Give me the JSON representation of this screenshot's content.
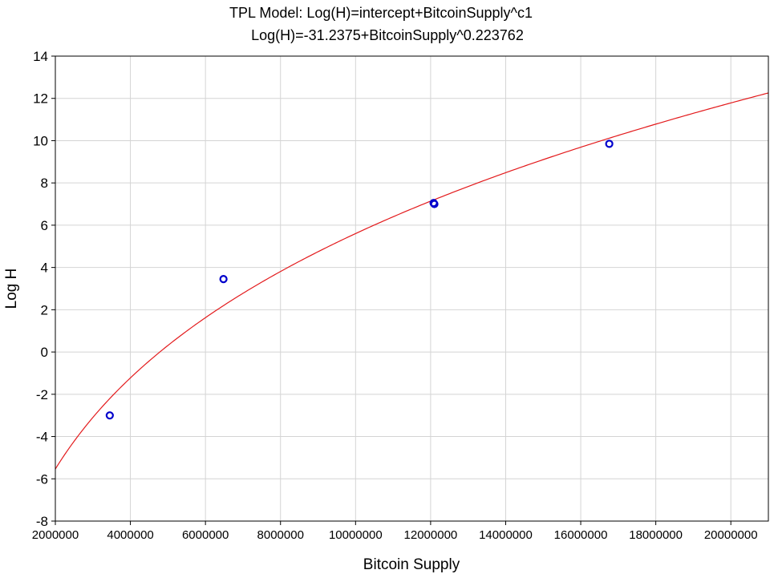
{
  "chart_data": {
    "type": "scatter",
    "title": "TPL Model: Log(H)=intercept+BitcoinSupply^c1",
    "subtitle": "Log(H)=-31.2375+BitcoinSupply^0.223762",
    "xlabel": "Bitcoin Supply",
    "ylabel": "Log H",
    "xlim": [
      2000000,
      21000000
    ],
    "ylim": [
      -8,
      14
    ],
    "xticks": [
      2000000,
      4000000,
      6000000,
      8000000,
      10000000,
      12000000,
      14000000,
      16000000,
      18000000,
      20000000
    ],
    "xtick_labels": [
      "2000000",
      "4000000",
      "6000000",
      "8000000",
      "10000000",
      "12000000",
      "14000000",
      "16000000",
      "18000000",
      "20000000"
    ],
    "yticks": [
      -8,
      -6,
      -4,
      -2,
      0,
      2,
      4,
      6,
      8,
      10,
      12,
      14
    ],
    "ytick_labels": [
      "-8",
      "-6",
      "-4",
      "-2",
      "0",
      "2",
      "4",
      "6",
      "8",
      "10",
      "12",
      "14"
    ],
    "grid": true,
    "points": [
      {
        "x": 3450000,
        "y": -3.0
      },
      {
        "x": 6480000,
        "y": 3.45
      },
      {
        "x": 12080000,
        "y": 7.05
      },
      {
        "x": 12100000,
        "y": 7.0
      },
      {
        "x": 16760000,
        "y": 9.85
      }
    ],
    "fit": {
      "intercept": -31.2375,
      "exponent": 0.223762
    },
    "point_color": "#0000cc",
    "line_color": "#e31a1c",
    "grid_color": "#d4d4d4"
  }
}
